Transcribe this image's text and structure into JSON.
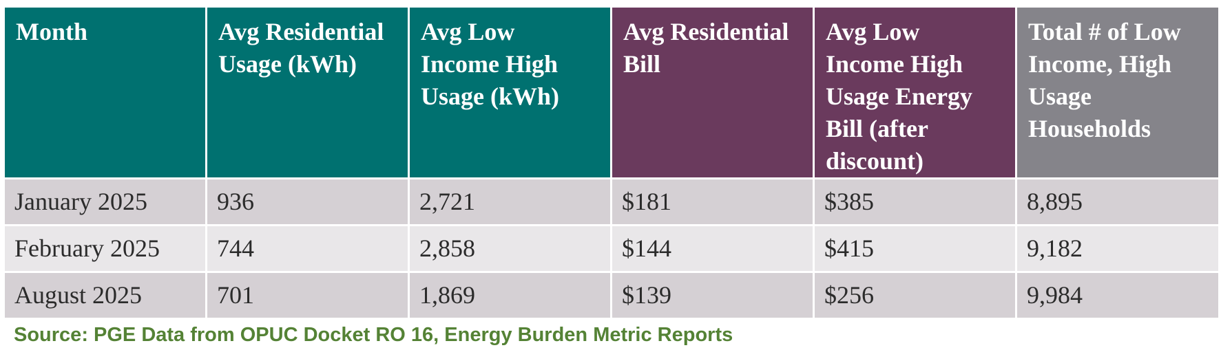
{
  "table": {
    "headers": [
      "Month",
      "Avg Residential Usage (kWh)",
      "Avg Low Income High Usage (kWh)",
      "Avg Residential Bill",
      "Avg Low Income High Usage Energy Bill (after discount)",
      "Total # of Low Income, High Usage Households"
    ],
    "header_colors": [
      "#007170",
      "#007170",
      "#007170",
      "#6a3a5d",
      "#6a3a5d",
      "#85848a"
    ],
    "rows": [
      [
        "January 2025",
        "936",
        "2,721",
        "$181",
        "$385",
        "8,895"
      ],
      [
        "February 2025",
        "744",
        "2,858",
        "$144",
        "$415",
        "9,182"
      ],
      [
        "August 2025",
        "701",
        "1,869",
        "$139",
        "$256",
        "9,984"
      ]
    ]
  },
  "source": "Source: PGE Data from OPUC Docket RO 16, Energy Burden Metric Reports"
}
